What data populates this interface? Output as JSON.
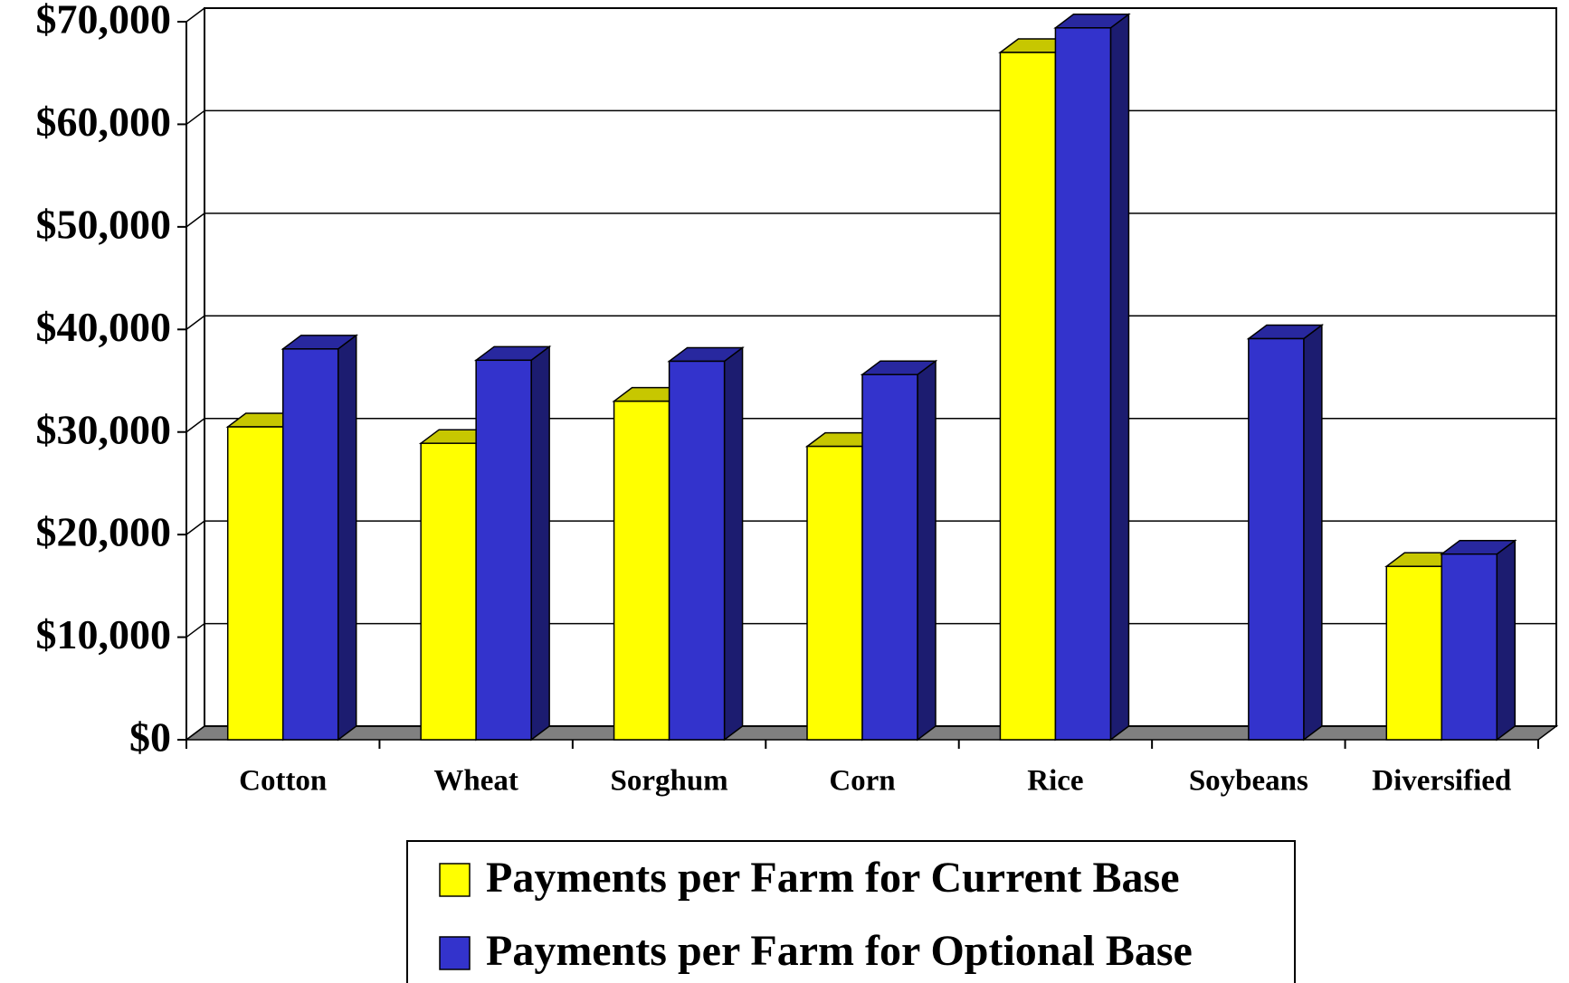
{
  "chart_data": {
    "type": "bar3d",
    "categories": [
      "Cotton",
      "Wheat",
      "Sorghum",
      "Corn",
      "Rice",
      "Soybeans",
      "Diversified"
    ],
    "series": [
      {
        "name": "Payments per Farm for Current Base",
        "color": "#ffff00",
        "values": [
          30500,
          28900,
          33000,
          28600,
          67000,
          null,
          16900
        ]
      },
      {
        "name": "Payments per Farm for Optional Base",
        "color": "#3333cc",
        "values": [
          38100,
          37000,
          36900,
          35600,
          69400,
          39100,
          18100
        ]
      }
    ],
    "ylim": [
      0,
      70000
    ],
    "yticks": [
      {
        "value": 0,
        "label": "$0"
      },
      {
        "value": 10000,
        "label": "$10,000"
      },
      {
        "value": 20000,
        "label": "$20,000"
      },
      {
        "value": 30000,
        "label": "$30,000"
      },
      {
        "value": 40000,
        "label": "$40,000"
      },
      {
        "value": 50000,
        "label": "$50,000"
      },
      {
        "value": 60000,
        "label": "$60,000"
      },
      {
        "value": 70000,
        "label": "$70,000"
      }
    ],
    "grid": true
  }
}
